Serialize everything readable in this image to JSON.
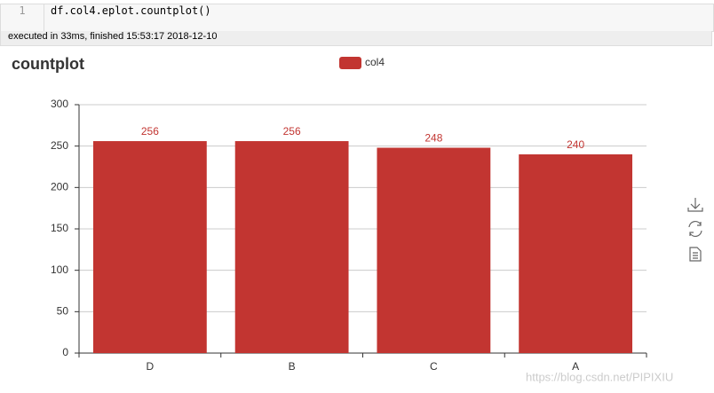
{
  "cell": {
    "line_number": "1",
    "code": "df.col4.eplot.countplot()",
    "status": "executed in 33ms, finished 15:53:17 2018-12-10"
  },
  "watermark": "https://blog.csdn.net/PIPIXIU",
  "chart_data": {
    "type": "bar",
    "title": "countplot",
    "legend": [
      "col4"
    ],
    "series": [
      {
        "name": "col4",
        "color": "#c23531",
        "values": [
          256,
          256,
          248,
          240
        ]
      }
    ],
    "categories": [
      "D",
      "B",
      "C",
      "A"
    ],
    "ylim": [
      0,
      300
    ],
    "yticks": [
      0,
      50,
      100,
      150,
      200,
      250,
      300
    ],
    "grid": true,
    "value_labels_shown": true
  }
}
